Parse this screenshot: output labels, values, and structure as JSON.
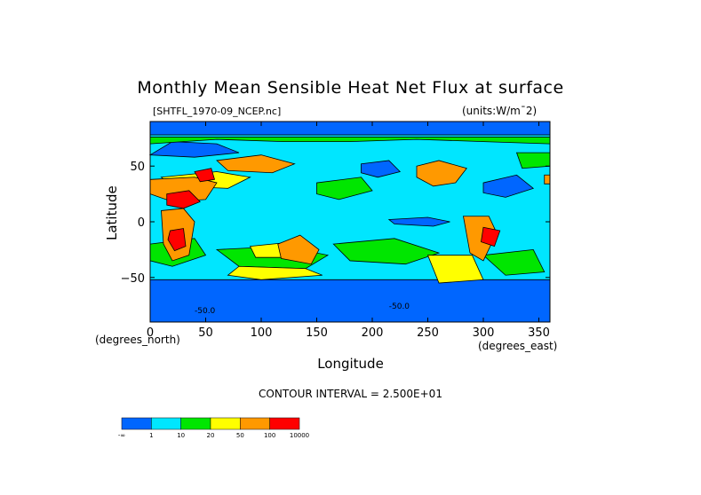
{
  "chart_data": {
    "type": "heatmap",
    "title": "Monthly Mean Sensible Heat Net Flux at surface",
    "source_file": "[SHTFL_1970-09_NCEP.nc]",
    "units": "(units:W/m^2)",
    "xlabel": "Longitude",
    "ylabel": "Latitude",
    "x_units": "(degrees_east)",
    "y_units": "(degrees_north)",
    "xlim": [
      0,
      360
    ],
    "ylim": [
      -90,
      90
    ],
    "x_ticks": [
      0,
      50,
      100,
      150,
      200,
      250,
      300,
      350
    ],
    "y_ticks": [
      50,
      0,
      -50
    ],
    "contour_interval": "CONTOUR INTERVAL = 2.500E+01",
    "colorbar": {
      "boundaries": [
        "-∞",
        "1",
        "10",
        "20",
        "50",
        "100",
        "10000"
      ],
      "colors": [
        "#0066ff",
        "#00e6ff",
        "#00e600",
        "#ffff00",
        "#ff9900",
        "#ff0000"
      ]
    },
    "map_labels": [
      "-50.0",
      "-50.0"
    ]
  }
}
